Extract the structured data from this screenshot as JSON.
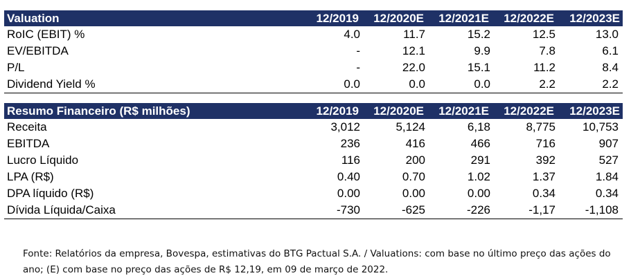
{
  "valuation": {
    "title": "Valuation",
    "columns": [
      "12/2019",
      "12/2020E",
      "12/2021E",
      "12/2022E",
      "12/2023E"
    ],
    "rows": [
      {
        "label": "RoIC (EBIT) %",
        "values": [
          "4.0",
          "11.7",
          "15.2",
          "12.5",
          "13.0"
        ]
      },
      {
        "label": "EV/EBITDA",
        "values": [
          "-",
          "12.1",
          "9.9",
          "7.8",
          "6.1"
        ]
      },
      {
        "label": "P/L",
        "values": [
          "-",
          "22.0",
          "15.1",
          "11.2",
          "8.4"
        ]
      },
      {
        "label": "Dividend Yield %",
        "values": [
          "0.0",
          "0.0",
          "0.0",
          "2.2",
          "2.2"
        ]
      }
    ]
  },
  "financial": {
    "title": "Resumo Financeiro (R$ milhões)",
    "columns": [
      "12/2019",
      "12/2020E",
      "12/2021E",
      "12/2022E",
      "12/2023E"
    ],
    "rows": [
      {
        "label": "Receita",
        "values": [
          "3,012",
          "5,124",
          "6,18",
          "8,775",
          "10,753"
        ]
      },
      {
        "label": "EBITDA",
        "values": [
          "236",
          "416",
          "466",
          "716",
          "907"
        ]
      },
      {
        "label": "Lucro Líquido",
        "values": [
          "116",
          "200",
          "291",
          "392",
          "527"
        ]
      },
      {
        "label": "LPA (R$)",
        "values": [
          "0.40",
          "0.70",
          "1.02",
          "1.37",
          "1.84"
        ]
      },
      {
        "label": "DPA líquido (R$)",
        "values": [
          "0.00",
          "0.00",
          "0.00",
          "0.34",
          "0.34"
        ]
      },
      {
        "label": "Dívida Líquida/Caixa",
        "values": [
          "-730",
          "-625",
          "-226",
          "-1,17",
          "-1,108"
        ]
      }
    ]
  },
  "footnote": {
    "line1": "Fonte: Relatórios da empresa, Bovespa, estimativas do BTG Pactual S.A. / Valuations: com base no último preço das ações do",
    "line2": "ano; (E) com base no preço das ações de R$ 12,19, em 09 de março de 2022."
  },
  "colors": {
    "header_bg": "#1f3166",
    "header_text": "#ffffff"
  }
}
